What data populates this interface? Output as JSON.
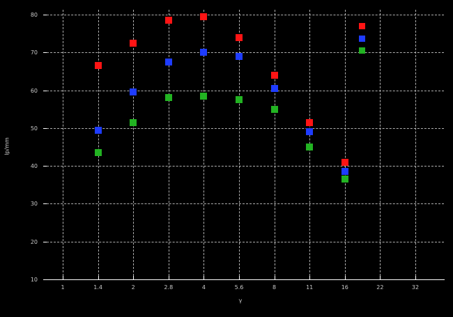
{
  "chart_data": {
    "type": "scatter",
    "title": "",
    "xlabel": "γ",
    "ylabel": "lp/mm",
    "x_scale": "log (photographic f-stop sequence)",
    "x_ticks": [
      "1",
      "1.4",
      "2",
      "2.8",
      "4",
      "5.6",
      "8",
      "11",
      "16",
      "22",
      "32"
    ],
    "y_ticks": [
      80,
      70,
      60,
      50,
      40,
      30,
      20,
      10
    ],
    "ylim": [
      10,
      80
    ],
    "grid": true,
    "marker": "filled-square",
    "background_color": "#000000",
    "grid_color": "#cfcfcf",
    "text_color": "#c9c9c9",
    "legend": {
      "position": "top-right-inside",
      "labels_visible": false,
      "entries": [
        {
          "color": "#ff1414"
        },
        {
          "color": "#1e3cff"
        },
        {
          "color": "#22b322"
        }
      ]
    },
    "series": [
      {
        "name": "red-series",
        "color": "#ff1414",
        "x": [
          "1.4",
          "2",
          "2.8",
          "4",
          "5.6",
          "8",
          "11",
          "16"
        ],
        "values": [
          66.5,
          72.5,
          78.5,
          79.5,
          74,
          64,
          51.5,
          41
        ]
      },
      {
        "name": "blue-series",
        "color": "#1e3cff",
        "x": [
          "1.4",
          "2",
          "2.8",
          "4",
          "5.6",
          "8",
          "11",
          "16"
        ],
        "values": [
          49.5,
          59.5,
          67.5,
          70,
          69,
          60.5,
          49,
          38.5
        ]
      },
      {
        "name": "green-series",
        "color": "#22b322",
        "x": [
          "1.4",
          "2",
          "2.8",
          "4",
          "5.6",
          "8",
          "11",
          "16"
        ],
        "values": [
          43.5,
          51.5,
          58,
          58.5,
          57.5,
          55,
          45,
          36.5
        ]
      }
    ]
  }
}
